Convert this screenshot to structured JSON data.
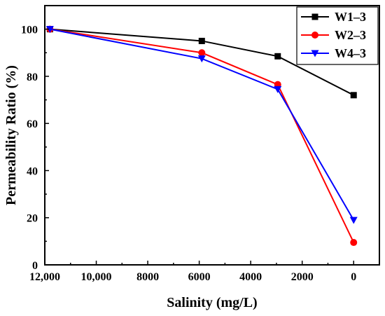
{
  "chart_data": {
    "type": "line",
    "title": "",
    "xlabel": "Salinity (mg/L)",
    "ylabel": "Permeability Ratio (%)",
    "xlim": [
      12000,
      -1000
    ],
    "ylim": [
      0,
      110
    ],
    "x_reversed": true,
    "grid": false,
    "legend_position": "top-right",
    "x_ticks": [
      12000,
      10000,
      8000,
      6000,
      4000,
      2000,
      0
    ],
    "x_tick_labels": [
      "12,000",
      "10,000",
      "8000",
      "6000",
      "4000",
      "2000",
      "0"
    ],
    "y_ticks": [
      0,
      20,
      40,
      60,
      80,
      100
    ],
    "y_tick_labels": [
      "0",
      "20",
      "40",
      "60",
      "80",
      "100"
    ],
    "x": [
      11800,
      5900,
      2950,
      0
    ],
    "series": [
      {
        "name": "W1–3",
        "values": [
          100,
          95,
          88.5,
          72
        ],
        "color": "#000000",
        "marker": "square"
      },
      {
        "name": "W2–3",
        "values": [
          100,
          90,
          76.5,
          9.5
        ],
        "color": "#ff0000",
        "marker": "circle"
      },
      {
        "name": "W4–3",
        "values": [
          100,
          87.5,
          74.5,
          19
        ],
        "color": "#0000ff",
        "marker": "triangle-down"
      }
    ]
  }
}
